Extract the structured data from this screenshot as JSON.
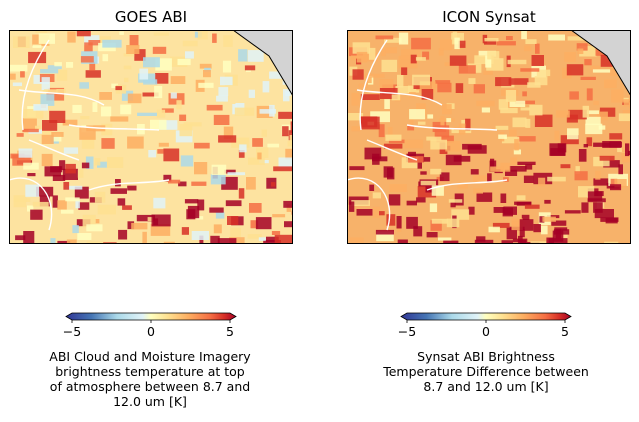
{
  "panels": [
    {
      "title": "GOES ABI",
      "fill": "warm"
    },
    {
      "title": "ICON Synsat",
      "fill": "hot"
    }
  ],
  "colorbars": [
    {
      "ticks": [
        "−5",
        "0",
        "5"
      ],
      "label_lines": [
        "ABI Cloud and Moisture Imagery",
        "brightness temperature at top",
        "of atmosphere between  8.7 and",
        "12.0 um [K]"
      ]
    },
    {
      "ticks": [
        "−5",
        "0",
        "5"
      ],
      "label_lines": [
        "Synsat ABI Brightness",
        "Temperature Difference between",
        "8.7 and 12.0 um [K]"
      ]
    }
  ],
  "chart_data": [
    {
      "type": "heatmap",
      "title": "GOES ABI",
      "colormap": "RdYlBu_r",
      "clim": [
        -5,
        5
      ],
      "colorbar_ticks": [
        -5,
        0,
        5
      ]
    },
    {
      "type": "heatmap",
      "title": "ICON Synsat",
      "colormap": "RdYlBu_r",
      "clim": [
        -5,
        5
      ],
      "colorbar_ticks": [
        -5,
        0,
        5
      ]
    }
  ],
  "colors": {
    "land_mask": "#d3d3d3",
    "coastline": "#ffffff",
    "cmap_low": "#313695",
    "cmap_mid": "#ffffbf",
    "cmap_high": "#a50026"
  }
}
